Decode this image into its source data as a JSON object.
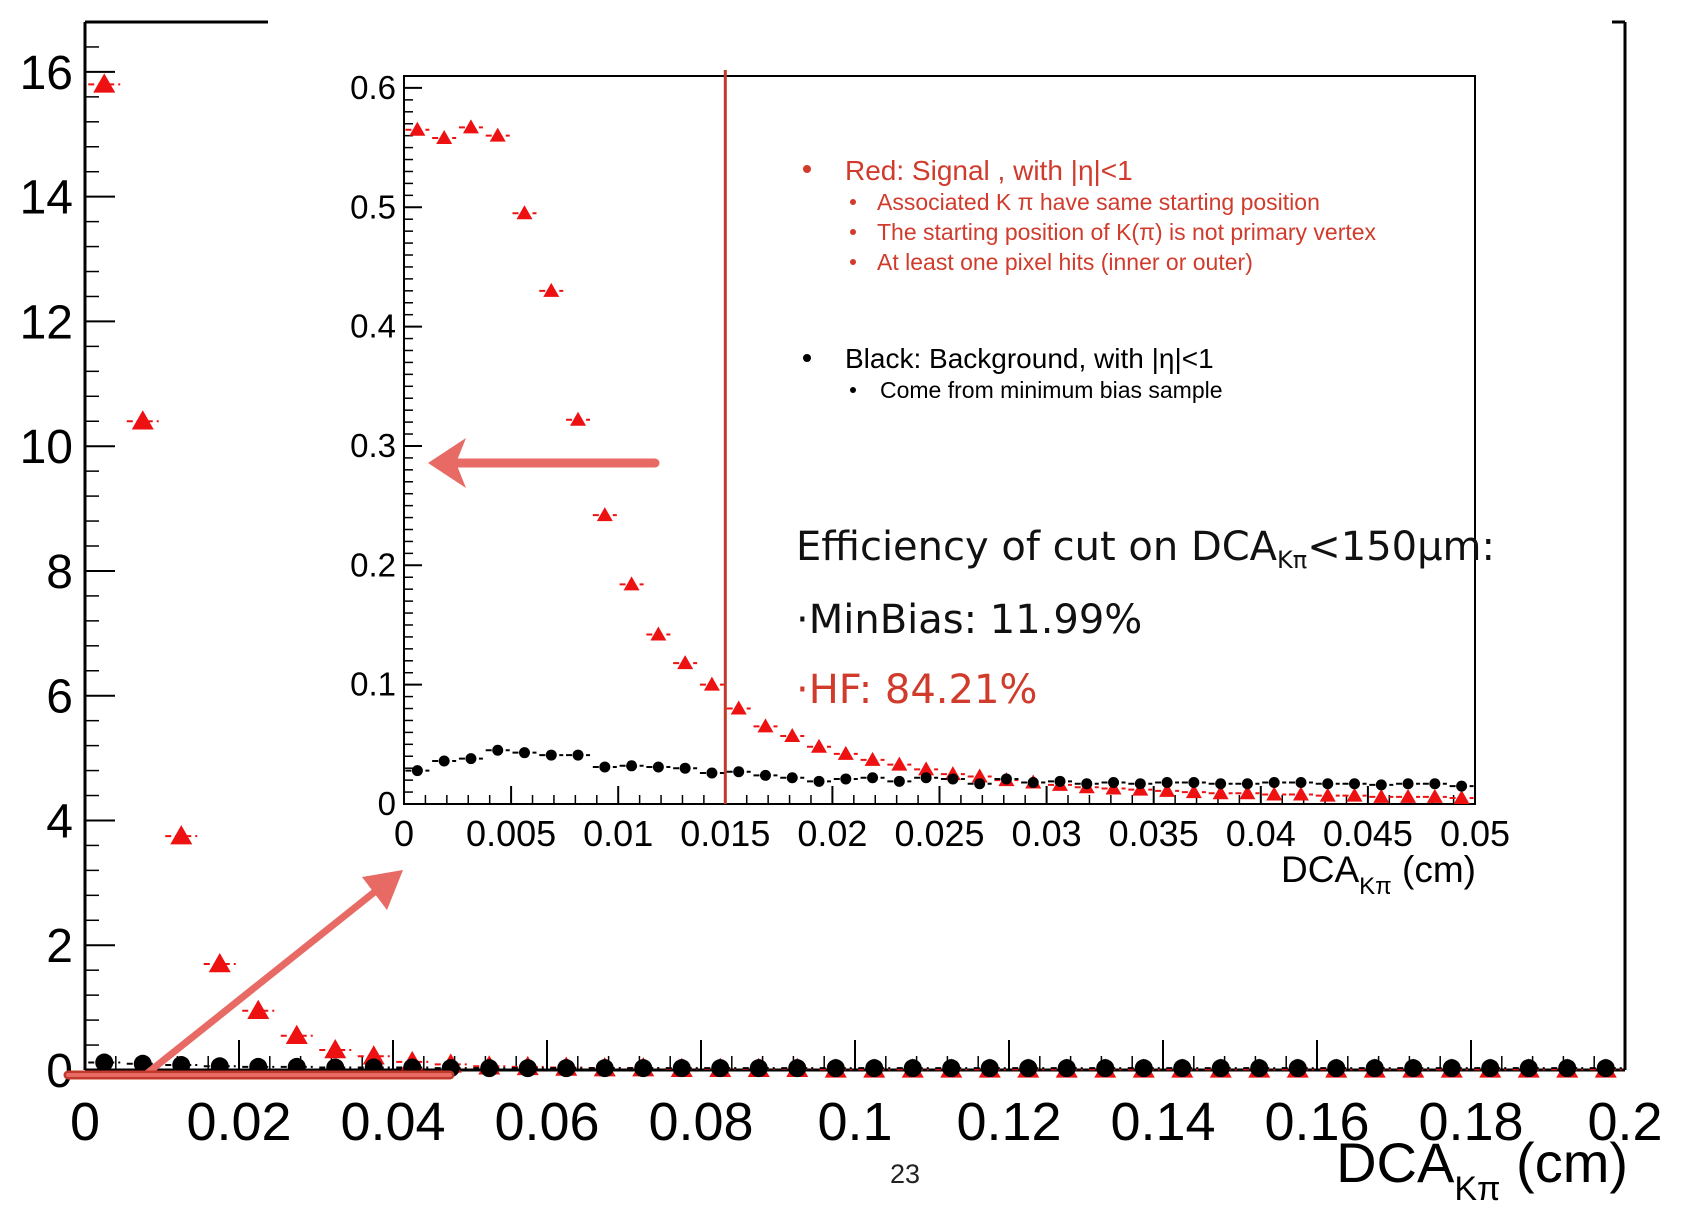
{
  "slide": {
    "page_number": "23"
  },
  "colors": {
    "signal": "#ee1111",
    "background": "#000000",
    "annotation": "#d03b2c",
    "arrow": "#e86a64"
  },
  "chart_data": [
    {
      "id": "main",
      "type": "scatter",
      "title": "",
      "xlabel": {
        "base": "DCA",
        "sub": "Kπ",
        "unit": " (cm)"
      },
      "ylabel": "",
      "xlim": [
        0,
        0.2
      ],
      "ylim": [
        0,
        16.8
      ],
      "xticks": [
        0,
        0.02,
        0.04,
        0.06,
        0.08,
        0.1,
        0.12,
        0.14,
        0.16,
        0.18,
        0.2
      ],
      "xtick_labels": [
        "0",
        "0.02",
        "0.04",
        "0.06",
        "0.08",
        "0.1",
        "0.12",
        "0.14",
        "0.16",
        "0.18",
        "0.2"
      ],
      "yticks": [
        0,
        2,
        4,
        6,
        8,
        10,
        12,
        14,
        16
      ],
      "ytick_labels": [
        "0",
        "2",
        "4",
        "6",
        "8",
        "10",
        "12",
        "14",
        "16"
      ],
      "grid": false,
      "series": [
        {
          "marker": "triangle",
          "color": "#ee1111",
          "x": [
            0.0025,
            0.0075,
            0.0125,
            0.0175,
            0.0225,
            0.0275,
            0.0325,
            0.0375,
            0.0425,
            0.0475,
            0.0525,
            0.0575,
            0.0625,
            0.0675,
            0.0725,
            0.0775,
            0.0825,
            0.0875,
            0.0925,
            0.0975,
            0.1025,
            0.1075,
            0.1125,
            0.1175,
            0.1225,
            0.1275,
            0.1325,
            0.1375,
            0.1425,
            0.1475,
            0.1525,
            0.1575,
            0.1625,
            0.1675,
            0.1725,
            0.1775,
            0.1825,
            0.1875,
            0.1925,
            0.1975
          ],
          "y": [
            15.8,
            10.4,
            3.75,
            1.7,
            0.95,
            0.55,
            0.32,
            0.22,
            0.13,
            0.09,
            0.06,
            0.05,
            0.04,
            0.03,
            0.03,
            0.02,
            0.02,
            0.02,
            0.02,
            0.01,
            0.01,
            0.01,
            0.01,
            0.01,
            0.01,
            0.01,
            0.01,
            0.01,
            0.01,
            0.01,
            0.01,
            0.01,
            0.01,
            0.01,
            0.01,
            0.01,
            0.01,
            0.01,
            0.01,
            0.01
          ]
        },
        {
          "marker": "circle",
          "color": "#000000",
          "x": [
            0.0025,
            0.0075,
            0.0125,
            0.0175,
            0.0225,
            0.0275,
            0.0325,
            0.0375,
            0.0425,
            0.0475,
            0.0525,
            0.0575,
            0.0625,
            0.0675,
            0.0725,
            0.0775,
            0.0825,
            0.0875,
            0.0925,
            0.0975,
            0.1025,
            0.1075,
            0.1125,
            0.1175,
            0.1225,
            0.1275,
            0.1325,
            0.1375,
            0.1425,
            0.1475,
            0.1525,
            0.1575,
            0.1625,
            0.1675,
            0.1725,
            0.1775,
            0.1825,
            0.1875,
            0.1925,
            0.1975
          ],
          "y": [
            0.12,
            0.1,
            0.08,
            0.06,
            0.05,
            0.05,
            0.04,
            0.04,
            0.04,
            0.03,
            0.03,
            0.03,
            0.03,
            0.03,
            0.03,
            0.03,
            0.03,
            0.03,
            0.03,
            0.03,
            0.03,
            0.03,
            0.03,
            0.03,
            0.03,
            0.03,
            0.03,
            0.03,
            0.03,
            0.03,
            0.03,
            0.03,
            0.03,
            0.03,
            0.03,
            0.03,
            0.03,
            0.03,
            0.03,
            0.03
          ]
        }
      ]
    },
    {
      "id": "inset",
      "type": "scatter",
      "title": "",
      "xlabel": {
        "base": "DCA",
        "sub": "Kπ",
        "unit": " (cm)"
      },
      "ylabel": "",
      "xlim": [
        0,
        0.05
      ],
      "ylim": [
        0,
        0.61
      ],
      "xticks": [
        0,
        0.005,
        0.01,
        0.015,
        0.02,
        0.025,
        0.03,
        0.035,
        0.04,
        0.045,
        0.05
      ],
      "xtick_labels": [
        "0",
        "0.005",
        "0.01",
        "0.015",
        "0.02",
        "0.025",
        "0.03",
        "0.035",
        "0.04",
        "0.045",
        "0.05"
      ],
      "yticks": [
        0,
        0.1,
        0.2,
        0.3,
        0.4,
        0.5,
        0.6
      ],
      "ytick_labels": [
        "0",
        "0.1",
        "0.2",
        "0.3",
        "0.4",
        "0.5",
        "0.6"
      ],
      "grid": false,
      "cut_line_x": 0.015,
      "series": [
        {
          "marker": "triangle",
          "color": "#ee1111",
          "x": [
            0.000625,
            0.001875,
            0.003125,
            0.004375,
            0.005625,
            0.006875,
            0.008125,
            0.009375,
            0.010625,
            0.011875,
            0.013125,
            0.014375,
            0.015625,
            0.016875,
            0.018125,
            0.019375,
            0.020625,
            0.021875,
            0.023125,
            0.024375,
            0.025625,
            0.026875,
            0.028125,
            0.029375,
            0.030625,
            0.031875,
            0.033125,
            0.034375,
            0.035625,
            0.036875,
            0.038125,
            0.039375,
            0.040625,
            0.041875,
            0.043125,
            0.044375,
            0.045625,
            0.046875,
            0.048125,
            0.049375
          ],
          "y": [
            0.565,
            0.558,
            0.567,
            0.56,
            0.495,
            0.43,
            0.322,
            0.242,
            0.184,
            0.142,
            0.118,
            0.1,
            0.08,
            0.065,
            0.057,
            0.048,
            0.042,
            0.037,
            0.033,
            0.029,
            0.025,
            0.023,
            0.02,
            0.018,
            0.016,
            0.014,
            0.013,
            0.012,
            0.011,
            0.01,
            0.009,
            0.009,
            0.008,
            0.008,
            0.007,
            0.007,
            0.006,
            0.006,
            0.006,
            0.005
          ]
        },
        {
          "marker": "circle",
          "color": "#000000",
          "x": [
            0.000625,
            0.001875,
            0.003125,
            0.004375,
            0.005625,
            0.006875,
            0.008125,
            0.009375,
            0.010625,
            0.011875,
            0.013125,
            0.014375,
            0.015625,
            0.016875,
            0.018125,
            0.019375,
            0.020625,
            0.021875,
            0.023125,
            0.024375,
            0.025625,
            0.026875,
            0.028125,
            0.029375,
            0.030625,
            0.031875,
            0.033125,
            0.034375,
            0.035625,
            0.036875,
            0.038125,
            0.039375,
            0.040625,
            0.041875,
            0.043125,
            0.044375,
            0.045625,
            0.046875,
            0.048125,
            0.049375
          ],
          "y": [
            0.028,
            0.036,
            0.038,
            0.045,
            0.043,
            0.041,
            0.041,
            0.031,
            0.032,
            0.031,
            0.03,
            0.026,
            0.027,
            0.024,
            0.022,
            0.019,
            0.021,
            0.022,
            0.019,
            0.022,
            0.021,
            0.017,
            0.021,
            0.018,
            0.019,
            0.017,
            0.018,
            0.017,
            0.018,
            0.018,
            0.017,
            0.017,
            0.018,
            0.018,
            0.017,
            0.017,
            0.016,
            0.017,
            0.017,
            0.015
          ]
        }
      ]
    }
  ],
  "legend": {
    "signal": {
      "title": "Red: Signal , with |η|<1",
      "items": [
        "Associated K π have same starting position",
        "The starting  position of K(π) is not primary vertex",
        "At least one pixel hits (inner or outer)"
      ]
    },
    "background": {
      "title": "Black: Background, with |η|<1",
      "items": [
        "Come from minimum bias sample"
      ]
    }
  },
  "annotation": {
    "efficiency_prefix": "Efficiency of cut on DCA",
    "efficiency_sub": "Kπ",
    "efficiency_suffix": "<150μm:",
    "minbias": "·MinBias: 11.99%",
    "hf": "·HF: 84.21%"
  }
}
